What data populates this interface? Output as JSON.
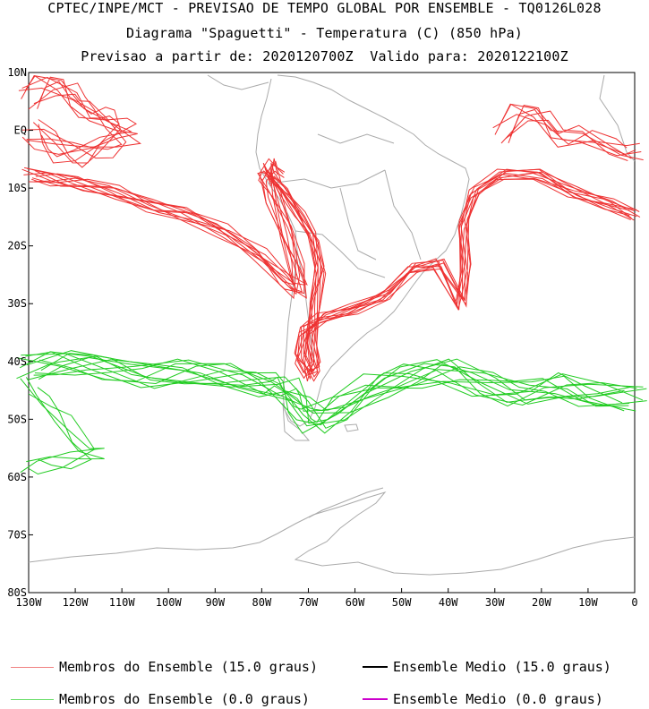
{
  "header": {
    "line1": "CPTEC/INPE/MCT - PREVISAO DE TEMPO GLOBAL POR ENSEMBLE - TQ0126L028",
    "line2": "Diagrama \"Spaguetti\" - Temperatura (C) (850 hPa)",
    "line3": "Previsao a partir de: 2020120700Z  Valido para: 2020122100Z"
  },
  "map": {
    "lat_labels": [
      "10N",
      "EQ",
      "10S",
      "20S",
      "30S",
      "40S",
      "50S",
      "60S",
      "70S",
      "80S"
    ],
    "lon_labels": [
      "130W",
      "120W",
      "110W",
      "100W",
      "90W",
      "80W",
      "70W",
      "60W",
      "50W",
      "40W",
      "30W",
      "20W",
      "10W",
      "0"
    ],
    "extent": {
      "lon": [
        -130,
        0
      ],
      "lat": [
        -80,
        10
      ]
    },
    "coastline_color": "#aaaaaa"
  },
  "legend": {
    "items": [
      {
        "label": "Membros do Ensemble (15.0 graus)",
        "color": "#f08080"
      },
      {
        "label": "Ensemble Medio (15.0 graus)",
        "color": "#000000"
      },
      {
        "label": "Membros do Ensemble (0.0 graus)",
        "color": "#66dd66"
      },
      {
        "label": "Ensemble Medio (0.0 graus)",
        "color": "#cc00cc"
      }
    ]
  },
  "colors": {
    "warm_members": "#ee3333",
    "cold_members": "#22cc22"
  }
}
